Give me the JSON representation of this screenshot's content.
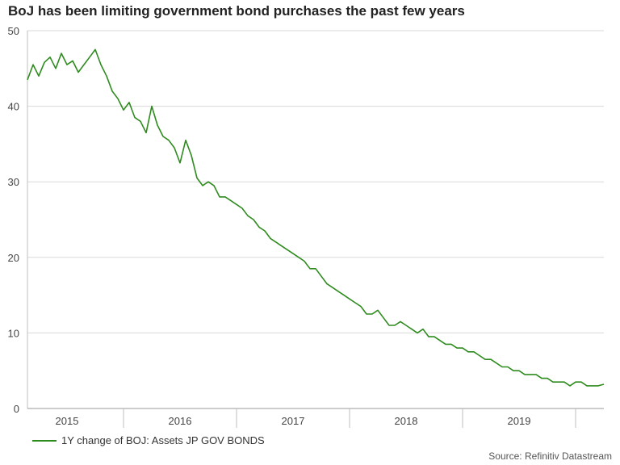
{
  "chart_data": {
    "type": "line",
    "title": "BoJ has been limiting government bond purchases the past few years",
    "xlabel": "",
    "ylabel": "",
    "ylim": [
      0,
      50
    ],
    "xlim": [
      2014.65,
      2019.75
    ],
    "yticks": [
      0,
      10,
      20,
      30,
      40,
      50
    ],
    "xtick_labels": [
      "2015",
      "2016",
      "2017",
      "2018",
      "2019"
    ],
    "xtick_centers": [
      2015.0,
      2016.0,
      2017.0,
      2018.0,
      2019.0
    ],
    "year_boundaries": [
      2015.5,
      2016.5,
      2017.5,
      2018.5,
      2019.5
    ],
    "grid": true,
    "series": [
      {
        "name": "1Y change of BOJ: Assets JP GOV BONDS",
        "color": "#2e8b1e",
        "x": [
          2014.65,
          2014.7,
          2014.75,
          2014.8,
          2014.85,
          2014.9,
          2014.95,
          2015.0,
          2015.05,
          2015.1,
          2015.15,
          2015.2,
          2015.25,
          2015.3,
          2015.35,
          2015.4,
          2015.45,
          2015.5,
          2015.55,
          2015.6,
          2015.65,
          2015.7,
          2015.75,
          2015.8,
          2015.85,
          2015.9,
          2015.95,
          2016.0,
          2016.05,
          2016.1,
          2016.15,
          2016.2,
          2016.25,
          2016.3,
          2016.35,
          2016.4,
          2016.45,
          2016.5,
          2016.55,
          2016.6,
          2016.65,
          2016.7,
          2016.75,
          2016.8,
          2016.85,
          2016.9,
          2016.95,
          2017.0,
          2017.05,
          2017.1,
          2017.15,
          2017.2,
          2017.25,
          2017.3,
          2017.35,
          2017.4,
          2017.45,
          2017.5,
          2017.55,
          2017.6,
          2017.65,
          2017.7,
          2017.75,
          2017.8,
          2017.85,
          2017.9,
          2017.95,
          2018.0,
          2018.05,
          2018.1,
          2018.15,
          2018.2,
          2018.25,
          2018.3,
          2018.35,
          2018.4,
          2018.45,
          2018.5,
          2018.55,
          2018.6,
          2018.65,
          2018.7,
          2018.75,
          2018.8,
          2018.85,
          2018.9,
          2018.95,
          2019.0,
          2019.05,
          2019.1,
          2019.15,
          2019.2,
          2019.25,
          2019.3,
          2019.35,
          2019.4,
          2019.45,
          2019.5,
          2019.55,
          2019.6,
          2019.65,
          2019.7,
          2019.75
        ],
        "values": [
          43.5,
          45.5,
          44.0,
          45.8,
          46.5,
          45.0,
          47.0,
          45.5,
          46.0,
          44.5,
          45.5,
          46.5,
          47.5,
          45.5,
          44.0,
          42.0,
          41.0,
          39.5,
          40.5,
          38.5,
          38.0,
          36.5,
          40.0,
          37.5,
          36.0,
          35.5,
          34.5,
          32.5,
          35.5,
          33.5,
          30.5,
          29.5,
          30.0,
          29.5,
          28.0,
          28.0,
          27.5,
          27.0,
          26.5,
          25.5,
          25.0,
          24.0,
          23.5,
          22.5,
          22.0,
          21.5,
          21.0,
          20.5,
          20.0,
          19.5,
          18.5,
          18.5,
          17.5,
          16.5,
          16.0,
          15.5,
          15.0,
          14.5,
          14.0,
          13.5,
          12.5,
          12.5,
          13.0,
          12.0,
          11.0,
          11.0,
          11.5,
          11.0,
          10.5,
          10.0,
          10.5,
          9.5,
          9.5,
          9.0,
          8.5,
          8.5,
          8.0,
          8.0,
          7.5,
          7.5,
          7.0,
          6.5,
          6.5,
          6.0,
          5.5,
          5.5,
          5.0,
          5.0,
          4.5,
          4.5,
          4.5,
          4.0,
          4.0,
          3.5,
          3.5,
          3.5,
          3.0,
          3.5,
          3.5,
          3.0,
          3.0,
          3.0,
          3.2
        ]
      }
    ],
    "legend_position": "bottom-left",
    "source": "Source: Refinitiv Datastream"
  }
}
